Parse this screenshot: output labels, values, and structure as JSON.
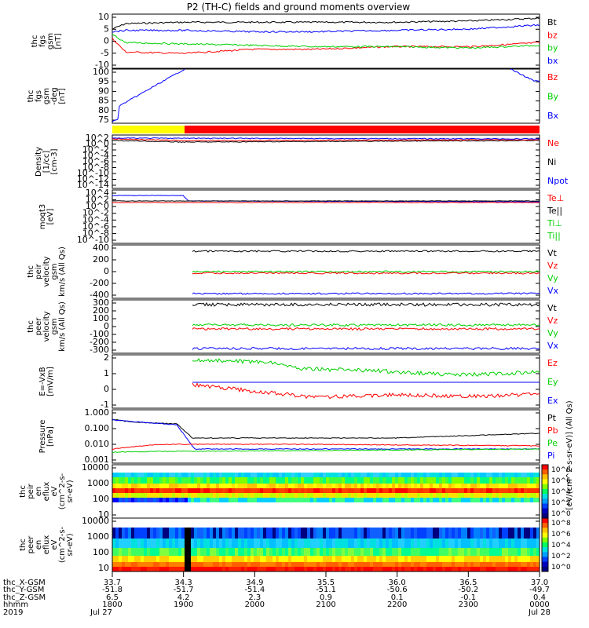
{
  "title": "P2 (TH-C) fields and ground moments overview",
  "footer": {
    "row_labels": [
      "thc_X-GSM",
      "thc_Y-GSM",
      "thc_Z-GSM",
      "hhmm",
      "2019"
    ],
    "columns": [
      {
        "x": "33.7",
        "y": "-51.8",
        "z": "6.5",
        "t": "1800",
        "d": "Jul 27"
      },
      {
        "x": "34.3",
        "y": "-51.7",
        "z": "4.2",
        "t": "1900",
        "d": ""
      },
      {
        "x": "34.9",
        "y": "-51.4",
        "z": "2.3",
        "t": "2000",
        "d": ""
      },
      {
        "x": "35.5",
        "y": "-51.1",
        "z": "0.9",
        "t": "2100",
        "d": ""
      },
      {
        "x": "36.0",
        "y": "-50.6",
        "z": "0.1",
        "t": "2200",
        "d": ""
      },
      {
        "x": "36.5",
        "y": "-50.2",
        "z": "-0.1",
        "t": "2300",
        "d": ""
      },
      {
        "x": "37.0",
        "y": "-49.7",
        "z": "0.4",
        "t": "0000",
        "d": "Jul 28"
      }
    ]
  },
  "colorbar": {
    "label": "[eV/(cm^2-s-sr-eV)] (All Qs)",
    "ticks": [
      "10^8",
      "10^6",
      "10^4",
      "10^2",
      "10^0"
    ]
  },
  "chart_data": [
    {
      "type": "line",
      "ylabel": [
        "thc",
        "fgs",
        "gsm",
        "[nT]"
      ],
      "yticks": [
        "10",
        "5",
        "0",
        "-5",
        "-10"
      ],
      "ylim": [
        -10,
        10
      ],
      "series": [
        {
          "name": "Bt",
          "color": "#000000",
          "values": [
            4.5,
            6.5,
            7,
            7,
            7,
            7,
            7.5,
            8.5
          ]
        },
        {
          "name": "bz",
          "color": "#ff0000",
          "values": [
            1,
            -4,
            -4.5,
            -3,
            -3,
            -2,
            -2,
            -0.5
          ]
        },
        {
          "name": "by",
          "color": "#00d000",
          "values": [
            2.5,
            -0.5,
            -1,
            -1.5,
            -2,
            -2,
            -2.5,
            -1.5
          ]
        },
        {
          "name": "bx",
          "color": "#0000ff",
          "values": [
            3.5,
            4,
            4,
            3.5,
            3.5,
            4,
            4.5,
            6
          ]
        }
      ]
    },
    {
      "type": "line",
      "ylabel": [
        "thc",
        "fgs",
        "gsm",
        "-deg",
        "[nT]"
      ],
      "yticks": [
        "100",
        "95",
        "90",
        "85",
        "80",
        "75"
      ],
      "ylim": [
        73,
        100
      ],
      "series": [
        {
          "name": "Bz",
          "color": "#ff0000",
          "values": []
        },
        {
          "name": "By",
          "color": "#00d000",
          "values": []
        },
        {
          "name": "Bx",
          "color": "#0000ff",
          "values": [
            74,
            82,
            90,
            100,
            100,
            100,
            100,
            93
          ]
        }
      ]
    },
    {
      "type": "bar",
      "ylabel": [],
      "yticks": [],
      "series": []
    },
    {
      "type": "line",
      "ylabel": [
        "Density",
        "[1/cc]",
        "[cm-3]"
      ],
      "yticks": [
        "10^2",
        "10^0",
        "10^-2",
        "10^-4",
        "10^-6",
        "10^-8",
        "10^-10",
        "10^-12",
        "10^-14"
      ],
      "series": [
        {
          "name": "Ne",
          "color": "#ff0000",
          "values": []
        },
        {
          "name": "Ni",
          "color": "#000000",
          "values": []
        },
        {
          "name": "Npot",
          "color": "#0000ff",
          "values": []
        }
      ]
    },
    {
      "type": "line",
      "ylabel": [
        "moqt3",
        "[eV]"
      ],
      "yticks": [
        "10^4",
        "10^2",
        "10^0",
        "10^-2",
        "10^-4",
        "10^-6",
        "10^-8",
        "10^-10"
      ],
      "series": [
        {
          "name": "Te⊥",
          "color": "#ff0000",
          "values": []
        },
        {
          "name": "Te||",
          "color": "#000000",
          "values": []
        },
        {
          "name": "Ti⊥",
          "color": "#00d000",
          "values": []
        },
        {
          "name": "Ti||",
          "color": "#00d000",
          "values": []
        }
      ]
    },
    {
      "type": "line",
      "ylabel": [
        "thc",
        "peir",
        "velocity",
        "gsm",
        "km/s (All Qs)"
      ],
      "yticks": [
        "400",
        "200",
        "0",
        "-200",
        "-400"
      ],
      "series": [
        {
          "name": "Vt",
          "color": "#000000",
          "values": []
        },
        {
          "name": "Vz",
          "color": "#ff0000",
          "values": []
        },
        {
          "name": "Vy",
          "color": "#00d000",
          "values": []
        },
        {
          "name": "Vx",
          "color": "#0000ff",
          "values": []
        }
      ]
    },
    {
      "type": "line",
      "ylabel": [
        "thc",
        "peer",
        "velocity",
        "gsm",
        "km/s (All Qs)"
      ],
      "yticks": [
        "300",
        "200",
        "100",
        "0",
        "-100",
        "-200",
        "-300"
      ],
      "series": [
        {
          "name": "Vt",
          "color": "#000000",
          "values": []
        },
        {
          "name": "Vz",
          "color": "#ff0000",
          "values": []
        },
        {
          "name": "Vy",
          "color": "#00d000",
          "values": []
        },
        {
          "name": "Vx",
          "color": "#0000ff",
          "values": []
        }
      ]
    },
    {
      "type": "line",
      "ylabel": [
        "E=-VxB",
        "[mV/m]"
      ],
      "yticks": [
        "2",
        "1",
        "0",
        "-1"
      ],
      "series": [
        {
          "name": "Ez",
          "color": "#ff0000",
          "values": []
        },
        {
          "name": "Ey",
          "color": "#00d000",
          "values": []
        },
        {
          "name": "Ex",
          "color": "#0000ff",
          "values": []
        }
      ]
    },
    {
      "type": "line",
      "ylabel": [
        "Pressure",
        "[nPa]"
      ],
      "yticks": [
        "1.000",
        "0.100",
        "0.010",
        "0.001"
      ],
      "series": [
        {
          "name": "Pt",
          "color": "#000000",
          "values": []
        },
        {
          "name": "Pb",
          "color": "#ff0000",
          "values": []
        },
        {
          "name": "Pe",
          "color": "#00d000",
          "values": []
        },
        {
          "name": "Pi",
          "color": "#0000ff",
          "values": []
        }
      ]
    },
    {
      "type": "heatmap",
      "ylabel": [
        "thc",
        "peir",
        "en",
        "eflux",
        "eV",
        "(cm^2-s-",
        "sr-eV)"
      ],
      "yticks": [
        "10000",
        "1000",
        "100",
        "10"
      ],
      "series": []
    },
    {
      "type": "heatmap",
      "ylabel": [
        "thc",
        "peer",
        "en",
        "eflux",
        "eV",
        "(cm^2-s-",
        "sr-eV)"
      ],
      "yticks": [
        "10000",
        "1000",
        "100",
        "10"
      ],
      "series": []
    }
  ]
}
